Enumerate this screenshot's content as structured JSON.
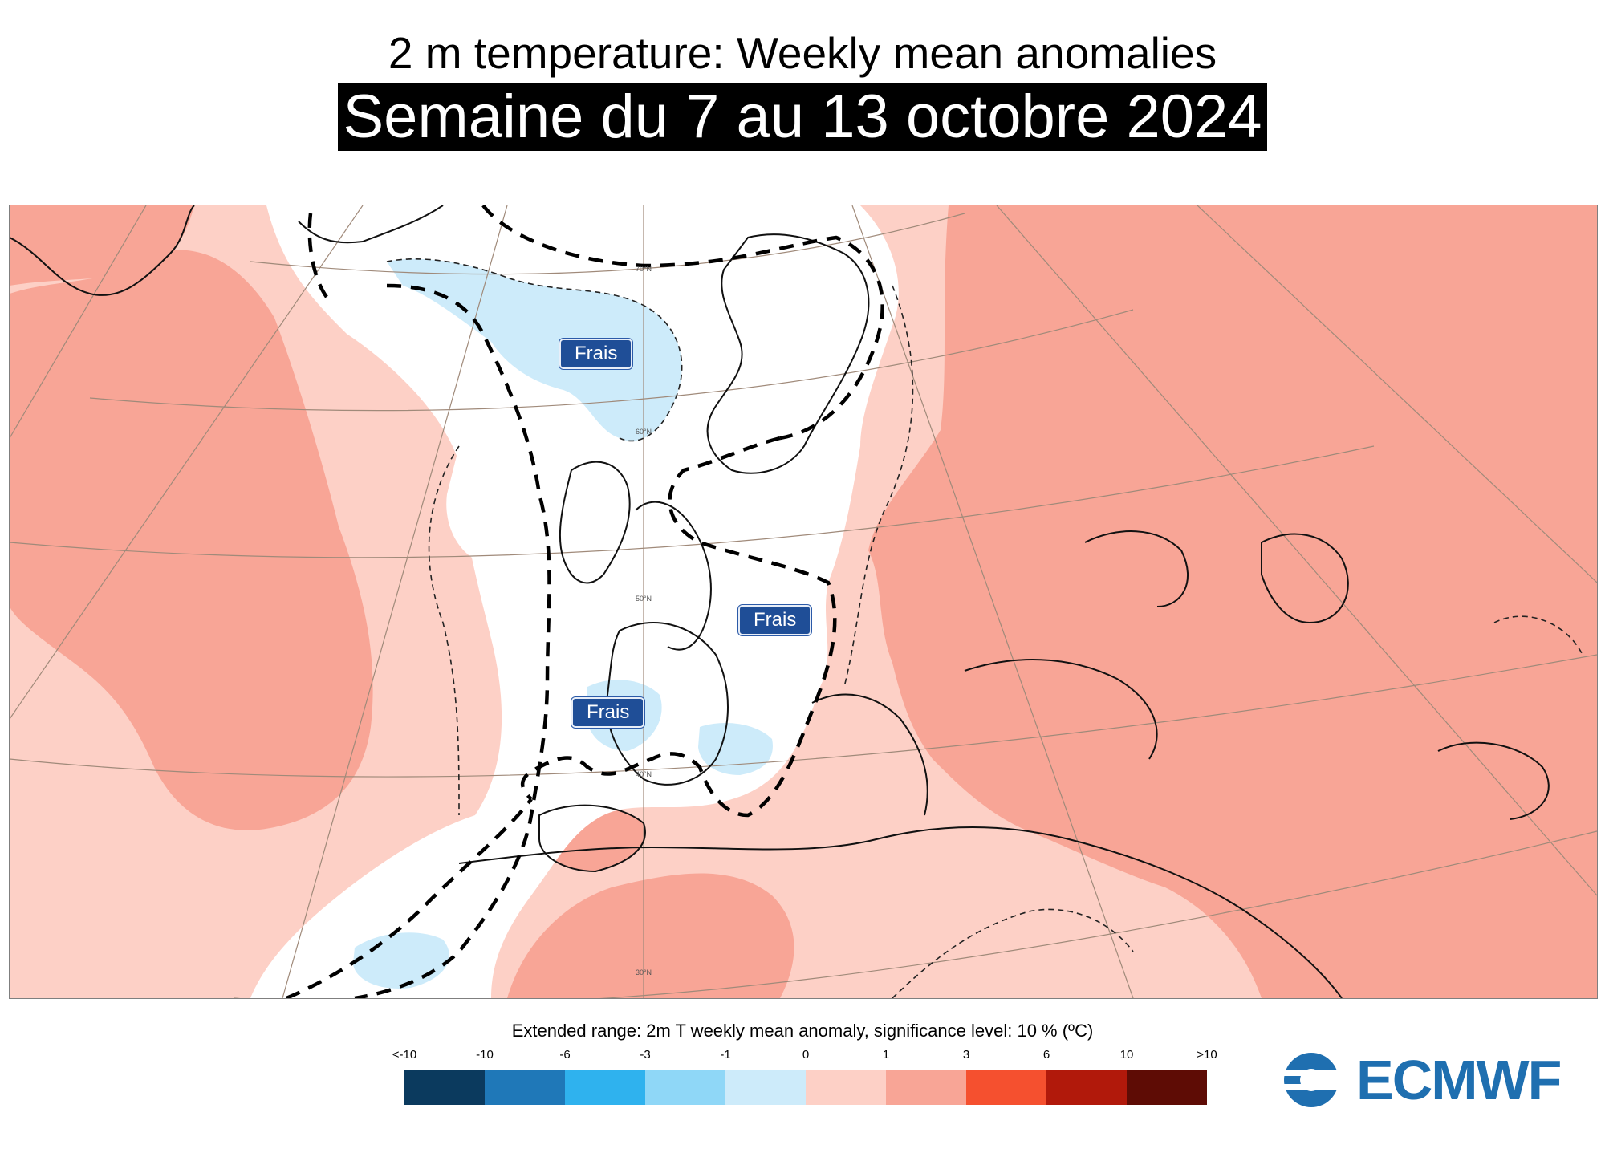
{
  "header": {
    "title": "2 m temperature: Weekly mean anomalies",
    "subtitle": "Semaine du 7 au 13 octobre 2024"
  },
  "map": {
    "labels": {
      "frais_north": "Frais",
      "frais_central": "Frais",
      "frais_south": "Frais"
    },
    "latitude_labels": [
      "70°N",
      "60°N",
      "50°N",
      "40°N",
      "30°N"
    ]
  },
  "legend": {
    "title": "Extended range: 2m T weekly mean anomaly, significance level: 10 % (ºC)",
    "ticks": [
      "<-10",
      "-10",
      "-6",
      "-3",
      "-1",
      "0",
      "1",
      "3",
      "6",
      "10",
      ">10"
    ],
    "colors": [
      "#0b3a5e",
      "#1f78b8",
      "#2fb2ee",
      "#8fd7f7",
      "#cdebfa",
      "#fdd0c6",
      "#f8a596",
      "#f5502f",
      "#b1190b",
      "#5e0c05"
    ]
  },
  "logo": {
    "text": "ECMWF",
    "color": "#1f6fb0"
  }
}
